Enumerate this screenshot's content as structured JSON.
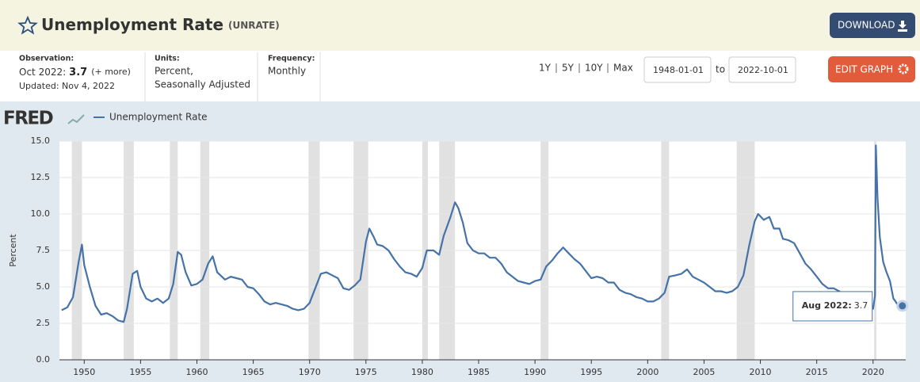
{
  "header": {
    "title": "Unemployment Rate",
    "code": "(UNRATE)",
    "download": "DOWNLOAD"
  },
  "info": {
    "observation_label": "Observation:",
    "observation_period": "Oct 2022:",
    "observation_value": 3.7,
    "more": "(+ more)",
    "updated": "Updated: Nov 4, 2022",
    "units_label": "Units:",
    "units": [
      "Percent,",
      "Seasonally Adjusted"
    ],
    "frequency_label": "Frequency:",
    "frequency": "Monthly"
  },
  "controls": {
    "ranges": [
      "1Y",
      "5Y",
      "10Y",
      "Max"
    ],
    "start": "1948-01-01",
    "to": "to",
    "end": "2022-10-01",
    "edit": "EDIT GRAPH"
  },
  "chart_data": {
    "type": "line",
    "logo": "FRED",
    "ylabel": "Percent",
    "xlim": [
      1947.8,
      2022.9
    ],
    "xticks": [
      1950,
      1955,
      1960,
      1965,
      1970,
      1975,
      1980,
      1985,
      1990,
      1995,
      2000,
      2005,
      2010,
      2015,
      2020
    ],
    "ylim": [
      0,
      15
    ],
    "yticks": [
      {
        "value": 0,
        "label": "0.0"
      },
      2.5,
      {
        "value": 5,
        "label": "5.0"
      },
      7.5,
      {
        "value": 10,
        "label": "10.0"
      },
      12.5,
      {
        "value": 15,
        "label": "15.0"
      }
    ],
    "grid": true,
    "recessions": [
      [
        1948.9,
        1949.8
      ],
      [
        1953.5,
        1954.4
      ],
      [
        1957.6,
        1958.3
      ],
      [
        1960.3,
        1961.1
      ],
      [
        1969.9,
        1970.9
      ],
      [
        1973.9,
        1975.2
      ],
      [
        1980.0,
        1980.5
      ],
      [
        1981.5,
        1982.9
      ],
      [
        1990.5,
        1991.2
      ],
      [
        2001.2,
        2001.9
      ],
      [
        2007.9,
        2009.5
      ],
      [
        2020.1,
        2020.3
      ]
    ],
    "x": [
      1948.0,
      1948.5,
      1949.0,
      1949.5,
      1949.8,
      1950.0,
      1950.5,
      1951.0,
      1951.5,
      1952.0,
      1952.5,
      1953.0,
      1953.5,
      1953.8,
      1954.3,
      1954.7,
      1955.0,
      1955.5,
      1956.0,
      1956.5,
      1957.0,
      1957.5,
      1957.9,
      1958.3,
      1958.6,
      1959.0,
      1959.5,
      1960.0,
      1960.5,
      1961.0,
      1961.4,
      1961.8,
      1962.5,
      1963.0,
      1963.5,
      1964.0,
      1964.5,
      1965.0,
      1965.5,
      1966.0,
      1966.5,
      1967.0,
      1967.5,
      1968.0,
      1968.5,
      1969.0,
      1969.5,
      1970.0,
      1970.5,
      1971.0,
      1971.5,
      1972.0,
      1972.5,
      1973.0,
      1973.5,
      1974.0,
      1974.5,
      1975.0,
      1975.3,
      1975.7,
      1976.0,
      1976.5,
      1977.0,
      1977.5,
      1978.0,
      1978.5,
      1979.0,
      1979.5,
      1980.0,
      1980.4,
      1980.7,
      1981.0,
      1981.5,
      1981.9,
      1982.5,
      1982.9,
      1983.2,
      1983.6,
      1984.0,
      1984.5,
      1985.0,
      1985.5,
      1986.0,
      1986.5,
      1987.0,
      1987.5,
      1988.0,
      1988.5,
      1989.0,
      1989.5,
      1990.0,
      1990.5,
      1991.0,
      1991.5,
      1992.0,
      1992.5,
      1993.0,
      1993.5,
      1994.0,
      1994.5,
      1995.0,
      1995.5,
      1996.0,
      1996.5,
      1997.0,
      1997.5,
      1998.0,
      1998.5,
      1999.0,
      1999.5,
      2000.0,
      2000.5,
      2001.0,
      2001.5,
      2001.9,
      2002.5,
      2003.0,
      2003.5,
      2004.0,
      2004.5,
      2005.0,
      2005.5,
      2006.0,
      2006.5,
      2007.0,
      2007.5,
      2008.0,
      2008.5,
      2009.0,
      2009.5,
      2009.8,
      2010.3,
      2010.8,
      2011.2,
      2011.7,
      2012.0,
      2012.5,
      2013.0,
      2013.5,
      2014.0,
      2014.5,
      2015.0,
      2015.5,
      2016.0,
      2016.5,
      2017.0,
      2017.5,
      2018.0,
      2018.5,
      2019.0,
      2019.5,
      2020.0,
      2020.17,
      2020.25,
      2020.4,
      2020.6,
      2020.9,
      2021.2,
      2021.5,
      2021.8,
      2022.0,
      2022.3,
      2022.6,
      2022.75
    ],
    "series": [
      {
        "name": "Unemployment Rate",
        "color": "#4572a7",
        "values": [
          3.4,
          3.6,
          4.3,
          6.7,
          7.9,
          6.5,
          5.0,
          3.7,
          3.1,
          3.2,
          3.0,
          2.7,
          2.6,
          3.5,
          5.9,
          6.1,
          5.0,
          4.2,
          4.0,
          4.2,
          3.9,
          4.2,
          5.2,
          7.4,
          7.2,
          6.0,
          5.1,
          5.2,
          5.5,
          6.6,
          7.1,
          6.0,
          5.5,
          5.7,
          5.6,
          5.5,
          5.0,
          4.9,
          4.5,
          4.0,
          3.8,
          3.9,
          3.8,
          3.7,
          3.5,
          3.4,
          3.5,
          3.9,
          4.9,
          5.9,
          6.0,
          5.8,
          5.6,
          4.9,
          4.8,
          5.1,
          5.5,
          8.1,
          9.0,
          8.4,
          7.9,
          7.8,
          7.5,
          6.9,
          6.4,
          6.0,
          5.9,
          5.7,
          6.3,
          7.5,
          7.5,
          7.5,
          7.2,
          8.5,
          9.8,
          10.8,
          10.4,
          9.4,
          8.0,
          7.5,
          7.3,
          7.3,
          7.0,
          7.0,
          6.6,
          6.0,
          5.7,
          5.4,
          5.3,
          5.2,
          5.4,
          5.5,
          6.4,
          6.8,
          7.3,
          7.7,
          7.3,
          6.9,
          6.6,
          6.1,
          5.6,
          5.7,
          5.6,
          5.3,
          5.3,
          4.8,
          4.6,
          4.5,
          4.3,
          4.2,
          4.0,
          4.0,
          4.2,
          4.6,
          5.7,
          5.8,
          5.9,
          6.2,
          5.7,
          5.5,
          5.3,
          5.0,
          4.7,
          4.7,
          4.6,
          4.7,
          5.0,
          5.8,
          7.8,
          9.5,
          10.0,
          9.6,
          9.8,
          9.0,
          9.0,
          8.3,
          8.2,
          8.0,
          7.3,
          6.6,
          6.2,
          5.7,
          5.2,
          4.9,
          4.9,
          4.7,
          4.3,
          4.1,
          3.8,
          4.0,
          3.7,
          3.5,
          4.4,
          14.7,
          11.1,
          8.4,
          6.7,
          6.0,
          5.4,
          4.2,
          4.0,
          3.6,
          3.7,
          3.7
        ]
      }
    ],
    "annotations": [
      {
        "x": 2022.6,
        "label": "Aug 2022:",
        "value": 3.7
      }
    ]
  }
}
